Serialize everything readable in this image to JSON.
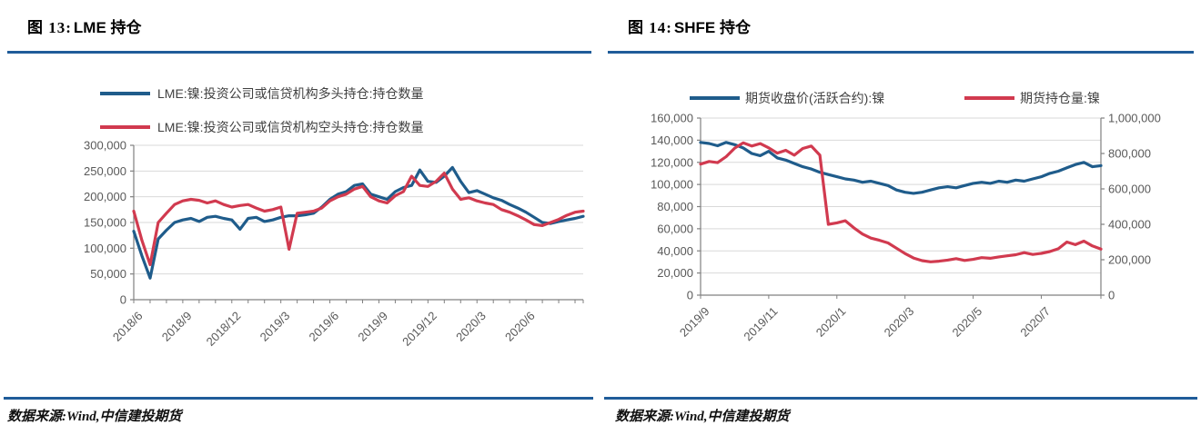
{
  "figures": [
    {
      "title_prefix": "图 13:",
      "title_name": "LME 持仓",
      "source": "数据来源:Wind,中信建投期货"
    },
    {
      "title_prefix": "图 14:",
      "title_name": "SHFE 持仓",
      "source": "数据来源:Wind,中信建投期货"
    }
  ],
  "colors": {
    "header_rule": "#1F5C99",
    "line_blue": "#1F5C8B",
    "line_red": "#D13A4F",
    "grid": "#D9D9D9",
    "axis": "#808080",
    "tick_text": "#595959"
  },
  "chart_data": [
    {
      "type": "line",
      "title": "图 13:LME 持仓",
      "grid": true,
      "legend_position": "top-stacked",
      "x_total_months": 27.5,
      "x_tick_labels": [
        "2018/6",
        "2018/9",
        "2018/12",
        "2019/3",
        "2019/6",
        "2019/9",
        "2019/12",
        "2020/3",
        "2020/6"
      ],
      "x_tick_positions_months": [
        0,
        3,
        6,
        9,
        12,
        15,
        18,
        21,
        24
      ],
      "ylim": [
        0,
        300000
      ],
      "y_ticks": [
        0,
        50000,
        100000,
        150000,
        200000,
        250000,
        300000
      ],
      "sample_interval_months": 0.5,
      "series": [
        {
          "name": "LME:镍:投资公司或信贷机构多头持仓:持仓数量",
          "color": "#1F5C8B",
          "axis": "left",
          "values": [
            133000,
            85000,
            42000,
            118000,
            135000,
            150000,
            155000,
            158000,
            152000,
            160000,
            162000,
            158000,
            155000,
            137000,
            158000,
            160000,
            152000,
            155000,
            160000,
            163000,
            163000,
            165000,
            168000,
            180000,
            195000,
            205000,
            210000,
            222000,
            225000,
            205000,
            200000,
            195000,
            210000,
            218000,
            222000,
            252000,
            230000,
            228000,
            240000,
            257000,
            230000,
            208000,
            212000,
            205000,
            198000,
            193000,
            185000,
            178000,
            170000,
            160000,
            150000,
            148000,
            152000,
            155000,
            158000,
            162000
          ]
        },
        {
          "name": "LME:镍:投资公司或信贷机构空头持仓:持仓数量",
          "color": "#D13A4F",
          "axis": "left",
          "values": [
            172000,
            115000,
            68000,
            150000,
            168000,
            185000,
            192000,
            195000,
            193000,
            188000,
            192000,
            185000,
            180000,
            183000,
            185000,
            178000,
            172000,
            175000,
            180000,
            98000,
            168000,
            170000,
            172000,
            178000,
            192000,
            200000,
            205000,
            215000,
            220000,
            200000,
            192000,
            188000,
            202000,
            210000,
            240000,
            222000,
            220000,
            230000,
            246000,
            215000,
            195000,
            198000,
            192000,
            188000,
            185000,
            175000,
            170000,
            163000,
            155000,
            146000,
            144000,
            150000,
            156000,
            164000,
            170000,
            172000
          ]
        }
      ]
    },
    {
      "type": "line",
      "title": "图 14:SHFE 持仓",
      "grid": true,
      "legend_position": "top-inline",
      "x_total_months": 11.75,
      "x_tick_labels": [
        "2019/9",
        "2019/11",
        "2020/1",
        "2020/3",
        "2020/5",
        "2020/7"
      ],
      "x_tick_positions_months": [
        0,
        2,
        4,
        6,
        8,
        10
      ],
      "ylim": [
        0,
        160000
      ],
      "y_ticks": [
        0,
        20000,
        40000,
        60000,
        80000,
        100000,
        120000,
        140000,
        160000
      ],
      "y2lim": [
        0,
        1000000
      ],
      "y2_ticks": [
        0,
        200000,
        400000,
        600000,
        800000,
        1000000
      ],
      "sample_interval_months": 0.25,
      "series": [
        {
          "name": "期货收盘价(活跃合约):镍",
          "color": "#1F5C8B",
          "axis": "left",
          "values": [
            138000,
            137000,
            135000,
            138000,
            136000,
            133000,
            128000,
            126000,
            130000,
            124000,
            122000,
            119000,
            116000,
            114000,
            111000,
            109000,
            107000,
            105000,
            104000,
            102000,
            103000,
            101000,
            99000,
            95000,
            93000,
            92000,
            93000,
            95000,
            97000,
            98000,
            97000,
            99000,
            101000,
            102000,
            101000,
            103000,
            102000,
            104000,
            103000,
            105000,
            107000,
            110000,
            112000,
            115000,
            118000,
            120000,
            116000,
            117000
          ]
        },
        {
          "name": "期货持仓量:镍",
          "color": "#D13A4F",
          "axis": "right",
          "values": [
            740000,
            755000,
            748000,
            782000,
            830000,
            860000,
            842000,
            856000,
            832000,
            802000,
            818000,
            790000,
            828000,
            842000,
            790000,
            400000,
            408000,
            420000,
            380000,
            345000,
            322000,
            310000,
            295000,
            265000,
            235000,
            210000,
            195000,
            188000,
            192000,
            198000,
            206000,
            196000,
            202000,
            212000,
            208000,
            216000,
            222000,
            228000,
            240000,
            230000,
            236000,
            246000,
            262000,
            300000,
            285000,
            305000,
            278000,
            260000
          ]
        }
      ]
    }
  ]
}
